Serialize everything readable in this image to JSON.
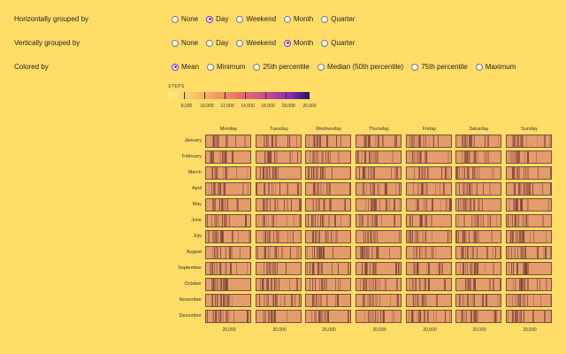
{
  "controls": {
    "horizontal": {
      "label": "Horizontally grouped by",
      "options": [
        "None",
        "Day",
        "Weekend",
        "Month",
        "Quarter"
      ],
      "selected": "Day"
    },
    "vertical": {
      "label": "Vertically grouped by",
      "options": [
        "None",
        "Day",
        "Weekend",
        "Month",
        "Quarter"
      ],
      "selected": "Month"
    },
    "color": {
      "label": "Colored by",
      "options": [
        "Mean",
        "Minimum",
        "25th percentile",
        "Median (50th percentile)",
        "75th percentile",
        "Maximum"
      ],
      "selected": "Mean"
    }
  },
  "legend": {
    "title": "STEPS",
    "ticks": [
      "8,000",
      "10,000",
      "12,000",
      "14,000",
      "16,000",
      "18,000",
      "20,000"
    ]
  },
  "grid": {
    "days": [
      "Monday",
      "Tuesday",
      "Wednesday",
      "Thursday",
      "Friday",
      "Saturday",
      "Sunday"
    ],
    "months": [
      "January",
      "February",
      "March",
      "April",
      "May",
      "June",
      "July",
      "August",
      "September",
      "October",
      "November",
      "December"
    ],
    "x_axis_label": "20,000"
  },
  "colors": {
    "background": "#ffdd66",
    "cell_fill": "#e39c6a",
    "stripe_dark": "#7a4a3a",
    "stripe_mid": "#b8705a",
    "selected_radio": "#7a2ad6"
  }
}
